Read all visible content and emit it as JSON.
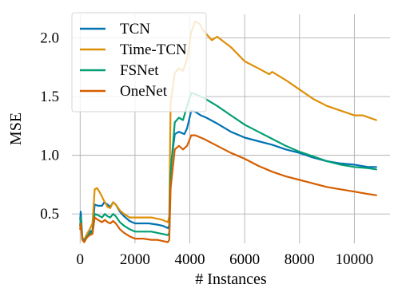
{
  "chart_data": {
    "type": "line",
    "xlabel": "# Instances",
    "ylabel": "MSE",
    "xlim": [
      -300,
      11300
    ],
    "ylim": [
      0.25,
      2.2
    ],
    "xticks": [
      0,
      2000,
      4000,
      6000,
      8000,
      10000
    ],
    "xtick_labels": [
      "0",
      "2000",
      "4000",
      "6000",
      "8000",
      "10000"
    ],
    "yticks": [
      0.5,
      1.0,
      1.5,
      2.0
    ],
    "ytick_labels": [
      "0.5",
      "1.0",
      "1.5",
      "2.0"
    ],
    "grid": true,
    "legend_position": "top-left",
    "series": [
      {
        "name": "TCN",
        "color": "#0072b2",
        "points": [
          [
            0,
            0.45
          ],
          [
            20,
            0.52
          ],
          [
            80,
            0.3
          ],
          [
            150,
            0.27
          ],
          [
            250,
            0.32
          ],
          [
            350,
            0.35
          ],
          [
            450,
            0.36
          ],
          [
            530,
            0.58
          ],
          [
            650,
            0.57
          ],
          [
            800,
            0.57
          ],
          [
            880,
            0.6
          ],
          [
            1000,
            0.58
          ],
          [
            1100,
            0.56
          ],
          [
            1200,
            0.6
          ],
          [
            1300,
            0.58
          ],
          [
            1450,
            0.52
          ],
          [
            1600,
            0.48
          ],
          [
            1800,
            0.44
          ],
          [
            2000,
            0.42
          ],
          [
            2200,
            0.42
          ],
          [
            2500,
            0.42
          ],
          [
            2800,
            0.41
          ],
          [
            3000,
            0.4
          ],
          [
            3200,
            0.38
          ],
          [
            3250,
            0.4
          ],
          [
            3300,
            0.9
          ],
          [
            3450,
            1.18
          ],
          [
            3600,
            1.2
          ],
          [
            3800,
            1.18
          ],
          [
            3900,
            1.23
          ],
          [
            4050,
            1.38
          ],
          [
            4200,
            1.37
          ],
          [
            4400,
            1.34
          ],
          [
            4600,
            1.32
          ],
          [
            5000,
            1.27
          ],
          [
            5500,
            1.2
          ],
          [
            6000,
            1.15
          ],
          [
            6500,
            1.12
          ],
          [
            7000,
            1.09
          ],
          [
            7500,
            1.05
          ],
          [
            8000,
            1.02
          ],
          [
            8500,
            0.98
          ],
          [
            9000,
            0.95
          ],
          [
            9500,
            0.93
          ],
          [
            10000,
            0.92
          ],
          [
            10500,
            0.9
          ],
          [
            10800,
            0.9
          ]
        ]
      },
      {
        "name": "Time-TCN",
        "color": "#de8f05",
        "points": [
          [
            0,
            0.4
          ],
          [
            20,
            0.46
          ],
          [
            80,
            0.3
          ],
          [
            150,
            0.28
          ],
          [
            250,
            0.33
          ],
          [
            350,
            0.37
          ],
          [
            450,
            0.42
          ],
          [
            530,
            0.71
          ],
          [
            620,
            0.72
          ],
          [
            750,
            0.67
          ],
          [
            850,
            0.62
          ],
          [
            1000,
            0.56
          ],
          [
            1100,
            0.55
          ],
          [
            1200,
            0.6
          ],
          [
            1300,
            0.58
          ],
          [
            1450,
            0.53
          ],
          [
            1600,
            0.5
          ],
          [
            1800,
            0.47
          ],
          [
            2000,
            0.47
          ],
          [
            2300,
            0.47
          ],
          [
            2600,
            0.47
          ],
          [
            2800,
            0.46
          ],
          [
            3000,
            0.45
          ],
          [
            3200,
            0.43
          ],
          [
            3250,
            0.48
          ],
          [
            3300,
            1.45
          ],
          [
            3450,
            1.7
          ],
          [
            3600,
            1.74
          ],
          [
            3750,
            1.72
          ],
          [
            3900,
            1.82
          ],
          [
            4050,
            2.05
          ],
          [
            4200,
            2.14
          ],
          [
            4350,
            2.12
          ],
          [
            4500,
            2.06
          ],
          [
            4800,
            1.98
          ],
          [
            5000,
            2.01
          ],
          [
            5500,
            1.92
          ],
          [
            6000,
            1.8
          ],
          [
            6500,
            1.74
          ],
          [
            6900,
            1.69
          ],
          [
            7000,
            1.71
          ],
          [
            7500,
            1.64
          ],
          [
            8000,
            1.56
          ],
          [
            8500,
            1.48
          ],
          [
            9000,
            1.42
          ],
          [
            9500,
            1.38
          ],
          [
            10000,
            1.34
          ],
          [
            10300,
            1.34
          ],
          [
            10800,
            1.3
          ]
        ]
      },
      {
        "name": "FSNet",
        "color": "#029e73",
        "points": [
          [
            0,
            0.4
          ],
          [
            20,
            0.47
          ],
          [
            80,
            0.29
          ],
          [
            150,
            0.27
          ],
          [
            250,
            0.31
          ],
          [
            350,
            0.33
          ],
          [
            450,
            0.35
          ],
          [
            530,
            0.5
          ],
          [
            650,
            0.49
          ],
          [
            800,
            0.47
          ],
          [
            900,
            0.5
          ],
          [
            1000,
            0.48
          ],
          [
            1100,
            0.47
          ],
          [
            1200,
            0.5
          ],
          [
            1300,
            0.48
          ],
          [
            1450,
            0.43
          ],
          [
            1600,
            0.4
          ],
          [
            1800,
            0.37
          ],
          [
            2000,
            0.35
          ],
          [
            2300,
            0.35
          ],
          [
            2600,
            0.35
          ],
          [
            2800,
            0.34
          ],
          [
            3000,
            0.33
          ],
          [
            3200,
            0.32
          ],
          [
            3250,
            0.34
          ],
          [
            3300,
            0.85
          ],
          [
            3450,
            1.28
          ],
          [
            3600,
            1.32
          ],
          [
            3750,
            1.3
          ],
          [
            3900,
            1.42
          ],
          [
            4050,
            1.53
          ],
          [
            4200,
            1.52
          ],
          [
            4500,
            1.49
          ],
          [
            5000,
            1.42
          ],
          [
            5500,
            1.34
          ],
          [
            6000,
            1.26
          ],
          [
            6500,
            1.2
          ],
          [
            7000,
            1.14
          ],
          [
            7500,
            1.08
          ],
          [
            8000,
            1.03
          ],
          [
            8500,
            0.99
          ],
          [
            9000,
            0.95
          ],
          [
            9500,
            0.92
          ],
          [
            10000,
            0.9
          ],
          [
            10500,
            0.89
          ],
          [
            10800,
            0.88
          ]
        ]
      },
      {
        "name": "OneNet",
        "color": "#d55e00",
        "points": [
          [
            0,
            0.37
          ],
          [
            20,
            0.42
          ],
          [
            80,
            0.28
          ],
          [
            150,
            0.26
          ],
          [
            250,
            0.3
          ],
          [
            350,
            0.32
          ],
          [
            450,
            0.33
          ],
          [
            530,
            0.47
          ],
          [
            650,
            0.45
          ],
          [
            800,
            0.43
          ],
          [
            900,
            0.45
          ],
          [
            1000,
            0.43
          ],
          [
            1100,
            0.42
          ],
          [
            1200,
            0.44
          ],
          [
            1300,
            0.42
          ],
          [
            1450,
            0.37
          ],
          [
            1600,
            0.34
          ],
          [
            1800,
            0.31
          ],
          [
            2000,
            0.29
          ],
          [
            2300,
            0.29
          ],
          [
            2600,
            0.28
          ],
          [
            2800,
            0.28
          ],
          [
            3000,
            0.27
          ],
          [
            3200,
            0.26
          ],
          [
            3250,
            0.28
          ],
          [
            3300,
            0.72
          ],
          [
            3450,
            1.05
          ],
          [
            3600,
            1.08
          ],
          [
            3750,
            1.05
          ],
          [
            3900,
            1.08
          ],
          [
            4050,
            1.17
          ],
          [
            4200,
            1.17
          ],
          [
            4500,
            1.14
          ],
          [
            5000,
            1.08
          ],
          [
            5500,
            1.02
          ],
          [
            6000,
            0.97
          ],
          [
            6500,
            0.91
          ],
          [
            7000,
            0.86
          ],
          [
            7500,
            0.82
          ],
          [
            8000,
            0.79
          ],
          [
            8500,
            0.76
          ],
          [
            9000,
            0.73
          ],
          [
            9500,
            0.71
          ],
          [
            10000,
            0.69
          ],
          [
            10500,
            0.67
          ],
          [
            10800,
            0.66
          ]
        ]
      }
    ]
  }
}
